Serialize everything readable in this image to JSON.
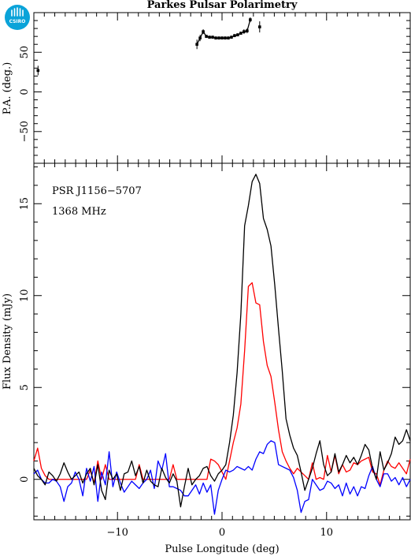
{
  "logo": {
    "text": "CSIRO",
    "color": "#0aa3d9"
  },
  "chart_data": [
    {
      "type": "scatter",
      "title": "Parkes Pulsar Polarimetry",
      "ylabel": "P.A. (deg.)",
      "xlabel": "",
      "xlim": [
        -18,
        18
      ],
      "ylim": [
        -90,
        100
      ],
      "yticks": [
        -50,
        0,
        50
      ],
      "series": [
        {
          "color": "#000000",
          "x": [
            -17.6,
            -2.4,
            -2.1,
            -1.8,
            -1.5,
            -1.2,
            -0.9,
            -0.6,
            -0.3,
            0.0,
            0.3,
            0.6,
            0.9,
            1.2,
            1.5,
            1.8,
            2.1,
            2.4,
            2.7,
            3.6
          ],
          "y": [
            27,
            60,
            68,
            76,
            70,
            69,
            69,
            68,
            68,
            68,
            68,
            68,
            69,
            71,
            72,
            74,
            76,
            77,
            91,
            82
          ],
          "err": [
            6,
            6,
            4,
            3,
            2,
            2,
            2,
            2,
            2,
            2,
            2,
            2,
            2,
            2,
            2,
            2,
            3,
            3,
            3,
            7
          ]
        }
      ]
    },
    {
      "type": "line",
      "xlabel": "Pulse Longitude (deg)",
      "ylabel": "Flux Density (mJy)",
      "xlim": [
        -18,
        18
      ],
      "ylim": [
        -2.2,
        17.2
      ],
      "xticks": [
        -10,
        0,
        10
      ],
      "yticks": [
        0,
        5,
        10,
        15
      ],
      "annotations": [
        "PSR J1156−5707",
        "1368 MHz"
      ],
      "series": [
        {
          "color": "#000000",
          "x0": -18,
          "dx": 0.36,
          "values": [
            0.6,
            0.2,
            0.0,
            -0.3,
            0.4,
            0.2,
            -0.1,
            0.3,
            0.9,
            0.4,
            0.0,
            0.2,
            0.4,
            -0.2,
            0.3,
            0.6,
            -0.3,
            0.8,
            -0.6,
            -1.1,
            0.5,
            0.0,
            0.3,
            -0.6,
            0.3,
            0.4,
            1.0,
            0.2,
            0.7,
            -0.2,
            0.5,
            -0.1,
            -0.3,
            -0.4,
            0.6,
            0.1,
            -0.2,
            0.3,
            -0.1,
            -1.5,
            -0.4,
            0.6,
            -0.3,
            0.0,
            0.2,
            0.6,
            0.7,
            0.2,
            -0.1,
            0.3,
            0.5,
            0.8,
            2.0,
            3.5,
            5.8,
            9.0,
            13.8,
            14.9,
            16.2,
            16.6,
            16.1,
            14.2,
            13.6,
            12.7,
            10.6,
            8.2,
            5.9,
            3.3,
            2.4,
            1.7,
            1.3,
            0.4,
            -0.6,
            0.0,
            0.6,
            1.4,
            2.1,
            0.8,
            0.2,
            0.4,
            1.4,
            0.4,
            0.8,
            1.3,
            0.9,
            1.2,
            0.8,
            1.3,
            1.9,
            1.6,
            0.6,
            0.0,
            1.5,
            0.5,
            0.9,
            1.4,
            2.3,
            1.9,
            2.1,
            2.7,
            2.1,
            0.6,
            0.2,
            0.3,
            1.6,
            0.2,
            0.2,
            1.0,
            0.4,
            0.5,
            1.0,
            -0.3,
            -0.6,
            0.0,
            -0.4,
            0.0,
            0.9,
            -0.3,
            -1.0,
            0.0
          ]
        },
        {
          "color": "#ff0000",
          "x0": -18,
          "dx": 0.36,
          "values": [
            1.0,
            1.7,
            0.6,
            0.2,
            0.0,
            0.0,
            0.0,
            0.0,
            0.0,
            0.0,
            0.0,
            0.0,
            0.0,
            0.0,
            0.0,
            0.5,
            -0.2,
            1.0,
            0.0,
            0.8,
            0.0,
            0.0,
            0.0,
            0.0,
            0.0,
            0.0,
            0.0,
            0.0,
            0.8,
            0.0,
            0.0,
            0.0,
            0.0,
            0.0,
            0.0,
            0.0,
            0.0,
            0.8,
            0.0,
            0.0,
            0.0,
            0.0,
            0.0,
            0.0,
            0.0,
            0.0,
            0.0,
            1.1,
            1.0,
            0.8,
            0.4,
            0.0,
            1.0,
            2.0,
            2.8,
            4.1,
            7.0,
            10.5,
            10.7,
            9.6,
            9.5,
            7.5,
            6.2,
            5.6,
            4.2,
            2.7,
            1.5,
            1.0,
            0.6,
            0.3,
            0.6,
            0.4,
            0.2,
            0.0,
            0.9,
            0.0,
            0.1,
            0.0,
            1.3,
            0.4,
            1.3,
            0.3,
            0.8,
            0.4,
            0.5,
            0.9,
            0.8,
            1.0,
            1.1,
            1.2,
            0.4,
            0.3,
            -0.3,
            0.5,
            1.0,
            0.7,
            0.6,
            0.9,
            0.6,
            0.3,
            1.1,
            -0.1,
            1.0,
            0.9,
            0.6,
            0.2,
            0.6,
            0.1,
            0.5,
            0.9,
            1.2,
            0.5,
            0.0,
            -0.1,
            0.0,
            0.8,
            1.2,
            0.1,
            1.4,
            1.3
          ]
        },
        {
          "color": "#0000ff",
          "x0": -18,
          "dx": 0.36,
          "values": [
            0.3,
            0.5,
            0.0,
            -0.2,
            -0.2,
            0.0,
            -0.1,
            -0.4,
            -1.2,
            -0.4,
            -0.2,
            0.4,
            0.0,
            -0.9,
            0.6,
            -0.1,
            0.7,
            -1.2,
            0.4,
            -0.3,
            1.5,
            -0.4,
            0.4,
            -0.2,
            -0.7,
            -0.4,
            -0.1,
            -0.3,
            -0.5,
            -0.2,
            0.0,
            0.5,
            -0.5,
            1.0,
            0.5,
            1.4,
            -0.4,
            -0.4,
            -0.5,
            -0.6,
            -0.9,
            -0.9,
            -0.6,
            -0.3,
            -0.8,
            -0.2,
            -0.7,
            -0.3,
            -1.9,
            -0.6,
            0.0,
            0.5,
            0.4,
            0.5,
            0.7,
            0.6,
            0.5,
            0.7,
            0.5,
            1.1,
            1.5,
            1.4,
            1.9,
            2.1,
            2.0,
            0.8,
            0.7,
            0.6,
            0.5,
            0.1,
            -0.6,
            -1.8,
            -1.2,
            -1.1,
            0.0,
            -0.3,
            -0.6,
            -0.5,
            -0.1,
            -0.2,
            -0.5,
            -0.3,
            -0.9,
            -0.2,
            -0.8,
            -0.4,
            -0.9,
            -0.4,
            -0.5,
            0.2,
            0.7,
            0.0,
            -0.4,
            0.3,
            0.3,
            -0.1,
            0.1,
            -0.3,
            0.1,
            -0.4,
            0.0,
            0.4,
            -0.3,
            0.0,
            0.3,
            0.9,
            0.6,
            0.0,
            1.0,
            0.3,
            -0.3,
            -0.2,
            0.4,
            0.1,
            -1.2,
            -0.1,
            0.5,
            0.2,
            -0.5,
            -0.3
          ]
        }
      ]
    }
  ]
}
